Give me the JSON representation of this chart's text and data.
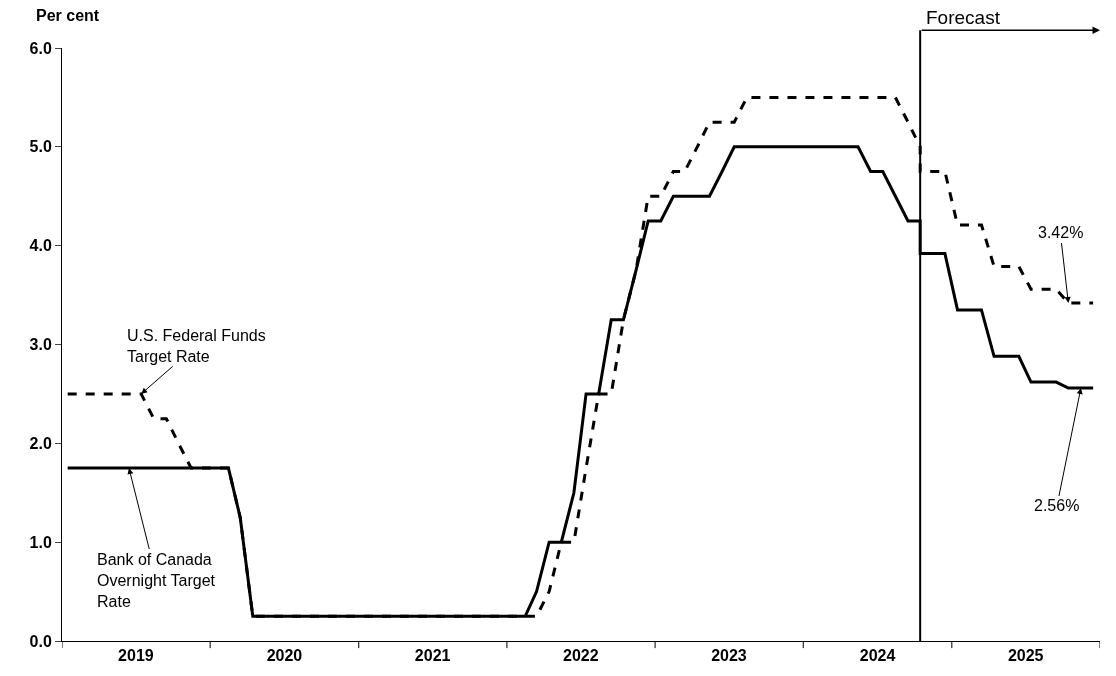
{
  "chart_data": {
    "type": "line",
    "ylabel": "Per cent",
    "xlim": [
      "2019-01-01",
      "2026-01-01"
    ],
    "xticks": [
      {
        "value": "2019-01-01",
        "label": null
      },
      {
        "value": "2019-07-02",
        "label": "2019"
      },
      {
        "value": "2020-01-01",
        "label": null
      },
      {
        "value": "2020-07-02",
        "label": "2020"
      },
      {
        "value": "2021-01-01",
        "label": null
      },
      {
        "value": "2021-07-02",
        "label": "2021"
      },
      {
        "value": "2022-01-01",
        "label": null
      },
      {
        "value": "2022-07-02",
        "label": "2022"
      },
      {
        "value": "2023-01-01",
        "label": null
      },
      {
        "value": "2023-07-02",
        "label": "2023"
      },
      {
        "value": "2024-01-01",
        "label": null
      },
      {
        "value": "2024-07-02",
        "label": "2024"
      },
      {
        "value": "2025-01-01",
        "label": null
      },
      {
        "value": "2025-07-02",
        "label": "2025"
      },
      {
        "value": "2026-01-01",
        "label": null
      }
    ],
    "ylim": [
      0,
      6
    ],
    "yticks": [
      {
        "value": 0,
        "label": "0.0"
      },
      {
        "value": 1,
        "label": "1.0"
      },
      {
        "value": 2,
        "label": "2.0"
      },
      {
        "value": 3,
        "label": "3.0"
      },
      {
        "value": 4,
        "label": "4.0"
      },
      {
        "value": 5,
        "label": "5.0"
      },
      {
        "value": 6,
        "label": "6.0"
      }
    ],
    "marker": "none",
    "series": [
      {
        "color": "#000000",
        "line_style": "solid",
        "x": [
          "2019-01-15",
          "2020-02-15",
          "2020-03-15",
          "2020-04-15",
          "2022-02-15",
          "2022-03-15",
          "2022-04-15",
          "2022-05-15",
          "2022-06-15",
          "2022-07-15",
          "2022-08-15",
          "2022-09-15",
          "2022-10-15",
          "2022-11-15",
          "2022-12-15",
          "2023-01-15",
          "2023-02-15",
          "2023-05-15",
          "2023-06-15",
          "2023-07-15",
          "2024-05-15",
          "2024-06-15",
          "2024-07-15",
          "2024-08-15",
          "2024-09-15",
          "2024-10-15",
          "2024-10-15",
          "2024-12-15",
          "2025-01-15",
          "2025-03-15",
          "2025-04-15",
          "2025-06-15",
          "2025-07-15",
          "2025-09-15",
          "2025-10-15",
          "2025-12-15"
        ],
        "values": [
          1.75,
          1.75,
          1.25,
          0.25,
          0.25,
          0.5,
          1.0,
          1.0,
          1.5,
          2.5,
          2.5,
          3.25,
          3.25,
          3.75,
          4.25,
          4.25,
          4.5,
          4.5,
          4.75,
          5.0,
          5.0,
          4.75,
          4.75,
          4.5,
          4.25,
          4.25,
          3.92,
          3.92,
          3.35,
          3.35,
          2.88,
          2.88,
          2.62,
          2.62,
          2.56,
          2.56
        ]
      },
      {
        "color": "#000000",
        "line_style": "dashed",
        "x": [
          "2019-01-15",
          "2019-07-15",
          "2019-08-15",
          "2019-09-15",
          "2019-10-15",
          "2019-11-15",
          "2020-02-15",
          "2020-03-15",
          "2020-04-15",
          "2022-03-15",
          "2022-04-15",
          "2022-05-15",
          "2022-06-15",
          "2022-07-15",
          "2022-08-15",
          "2022-09-15",
          "2022-10-15",
          "2022-11-15",
          "2022-12-15",
          "2023-01-15",
          "2023-02-15",
          "2023-03-15",
          "2023-04-15",
          "2023-05-15",
          "2023-07-15",
          "2023-08-15",
          "2024-08-15",
          "2024-09-15",
          "2024-10-15",
          "2024-10-15",
          "2024-12-15",
          "2025-01-15",
          "2025-03-15",
          "2025-04-15",
          "2025-06-15",
          "2025-07-15",
          "2025-09-15",
          "2025-10-15",
          "2025-12-15"
        ],
        "values": [
          2.5,
          2.5,
          2.25,
          2.25,
          2.0,
          1.75,
          1.75,
          1.25,
          0.25,
          0.25,
          0.5,
          1.0,
          1.0,
          1.75,
          2.5,
          2.5,
          3.25,
          3.75,
          4.5,
          4.5,
          4.75,
          4.75,
          5.0,
          5.25,
          5.25,
          5.5,
          5.5,
          5.25,
          5.0,
          4.75,
          4.75,
          4.21,
          4.21,
          3.79,
          3.79,
          3.56,
          3.56,
          3.42,
          3.42
        ]
      }
    ],
    "ref_lines": [
      {
        "axis": "x",
        "value": "2024-10-15",
        "label": "Forecast",
        "color": "#000000"
      }
    ],
    "annotations": [
      {
        "text": "U.S. Federal Funds\nTarget Rate",
        "x": "2019-07-15",
        "y": 2.5
      },
      {
        "text": "Bank of Canada\nOvernight Target\nRate",
        "x": "2019-06-15",
        "y": 1.75
      },
      {
        "text": "3.42%",
        "x": "2025-10-15",
        "y": 3.42
      },
      {
        "text": "2.56%",
        "x": "2025-11-15",
        "y": 2.56
      }
    ]
  }
}
